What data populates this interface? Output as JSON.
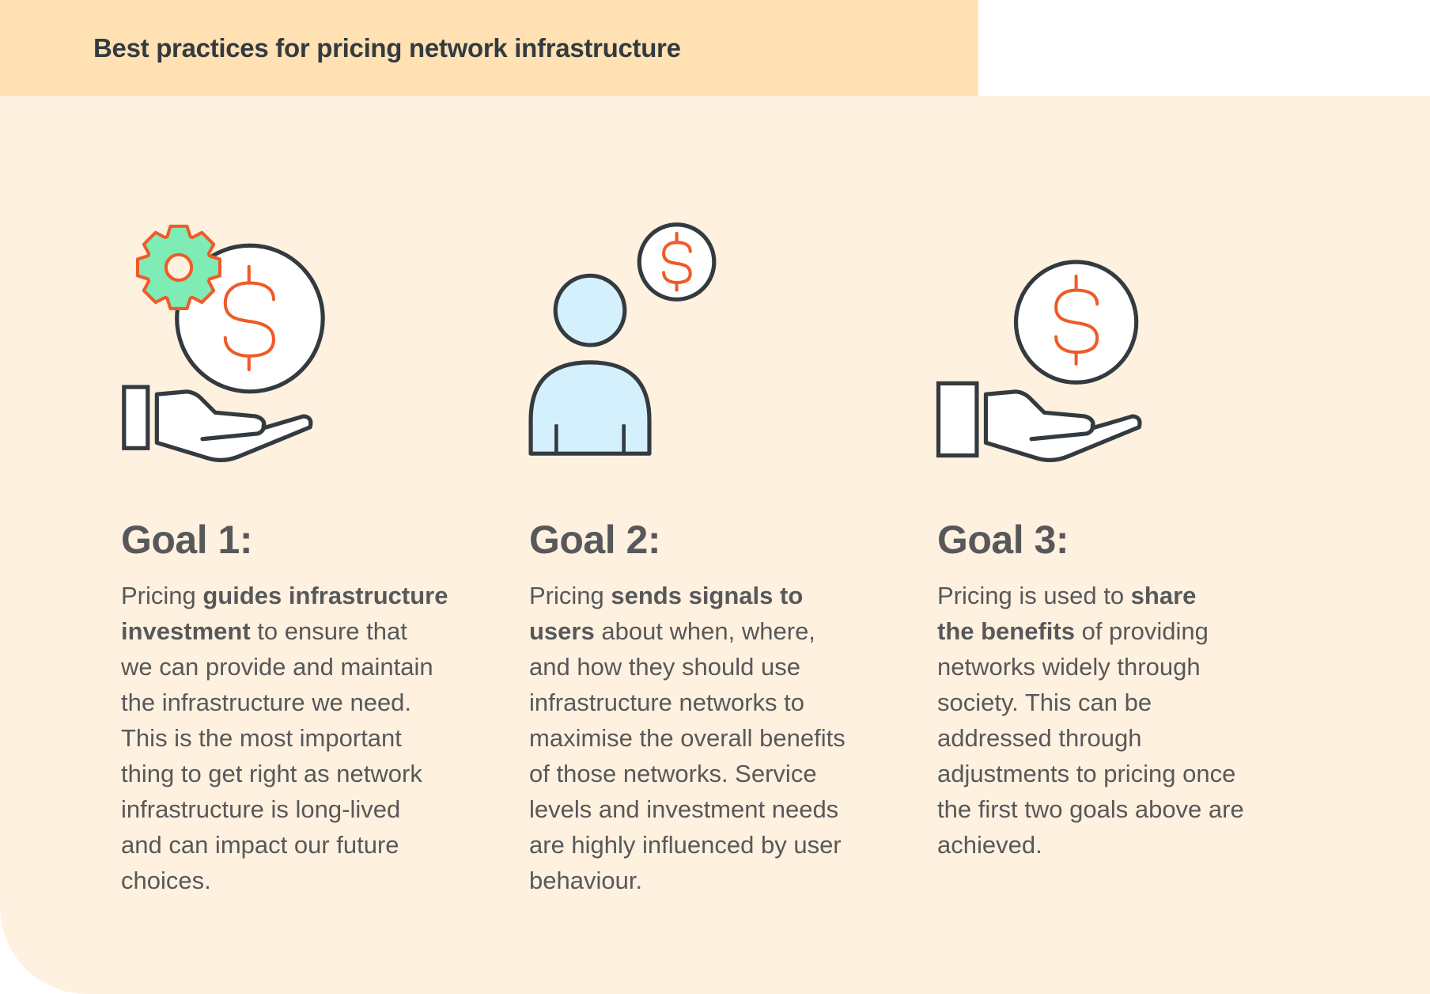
{
  "header": {
    "title": "Best practices for pricing network infrastructure"
  },
  "colors": {
    "header_bg": "#FFE1B3",
    "panel_bg": "#FFF1DF",
    "outline": "#333A40",
    "accent_orange": "#F05A28",
    "gear_green": "#7FEBB5",
    "person_blue": "#D4F0FC",
    "text": "#58585A"
  },
  "goals": [
    {
      "icon": "hand-holding-coin-with-gear-icon",
      "heading": "Goal 1:",
      "lines": [
        [
          {
            "t": "Pricing "
          },
          {
            "t": "guides infrastructure",
            "b": true
          }
        ],
        [
          {
            "t": "investment",
            "b": true
          },
          {
            "t": " to ensure that"
          }
        ],
        [
          {
            "t": "we can provide and maintain"
          }
        ],
        [
          {
            "t": "the infrastructure we need."
          }
        ],
        [
          {
            "t": "This is the most important"
          }
        ],
        [
          {
            "t": "thing to get right as network"
          }
        ],
        [
          {
            "t": "infrastructure is long-lived"
          }
        ],
        [
          {
            "t": "and can impact our future"
          }
        ],
        [
          {
            "t": "choices."
          }
        ]
      ]
    },
    {
      "icon": "person-with-coin-icon",
      "heading": "Goal 2:",
      "lines": [
        [
          {
            "t": "Pricing "
          },
          {
            "t": "sends signals to",
            "b": true
          }
        ],
        [
          {
            "t": "users",
            "b": true
          },
          {
            "t": " about when, where,"
          }
        ],
        [
          {
            "t": "and how they should use"
          }
        ],
        [
          {
            "t": "infrastructure networks to"
          }
        ],
        [
          {
            "t": "maximise the overall benefits"
          }
        ],
        [
          {
            "t": "of those networks. Service"
          }
        ],
        [
          {
            "t": "levels and investment needs"
          }
        ],
        [
          {
            "t": "are highly influenced by user"
          }
        ],
        [
          {
            "t": "behaviour."
          }
        ]
      ]
    },
    {
      "icon": "hand-holding-coin-icon",
      "heading": "Goal 3:",
      "lines": [
        [
          {
            "t": "Pricing is used to "
          },
          {
            "t": "share",
            "b": true
          }
        ],
        [
          {
            "t": "the benefits",
            "b": true
          },
          {
            "t": " of providing"
          }
        ],
        [
          {
            "t": "networks widely through"
          }
        ],
        [
          {
            "t": "society. This can be"
          }
        ],
        [
          {
            "t": "addressed through"
          }
        ],
        [
          {
            "t": "adjustments to pricing once"
          }
        ],
        [
          {
            "t": "the first two goals above are"
          }
        ],
        [
          {
            "t": "achieved."
          }
        ]
      ]
    }
  ]
}
